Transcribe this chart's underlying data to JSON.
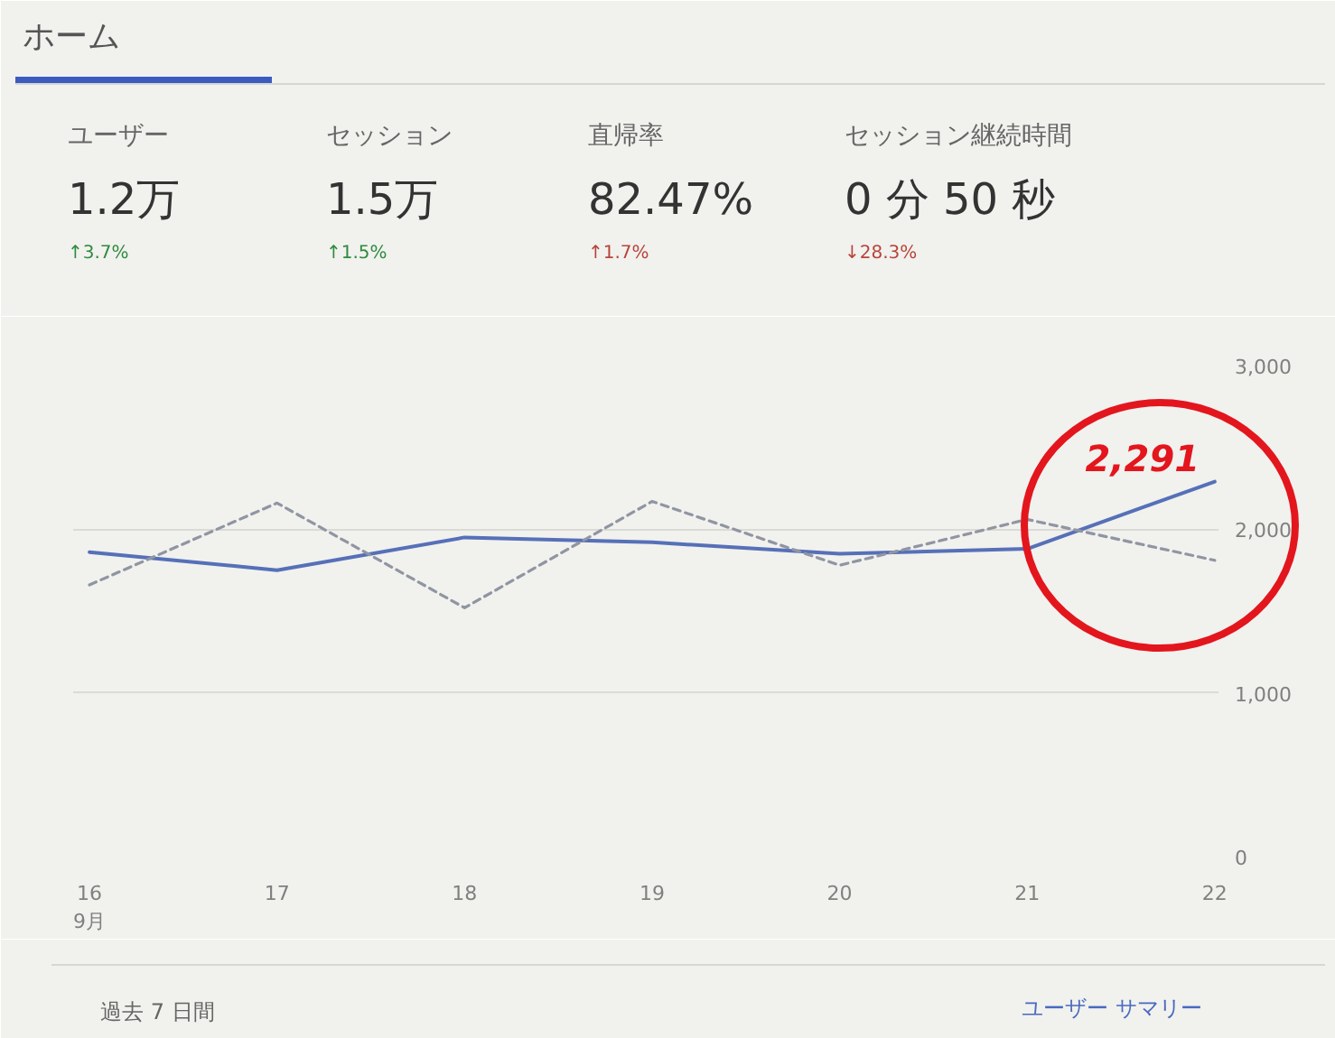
{
  "chart_data": {
    "type": "line",
    "title": "ホーム",
    "categories": [
      "16\n9月",
      "17",
      "18",
      "19",
      "20",
      "21",
      "22"
    ],
    "series": [
      {
        "color": "#5670b8",
        "values": [
          1860,
          1750,
          1950,
          1920,
          1850,
          1880,
          2291
        ]
      },
      {
        "color": "#9095a2",
        "line_style": "dashed",
        "values": [
          1660,
          2160,
          1520,
          2170,
          1780,
          2060,
          1810
        ]
      }
    ],
    "ylim": [
      0,
      3000
    ],
    "yticks": [
      0,
      {
        "value": 1000,
        "label": "1,000"
      },
      {
        "value": 2000,
        "label": "2,000"
      },
      {
        "value": 3000,
        "label": "3,000"
      }
    ],
    "grid": "y",
    "annotations": [
      "ユーザー",
      "1.2万",
      "↑3.7%",
      "セッション",
      "1.5万",
      "↑1.5%",
      "直帰率",
      "82.47%",
      "↑1.7%",
      "セッション継続時間",
      "0 分 50 秒",
      "↓28.3%",
      "過去 7 日間",
      "ユーザー サマリー",
      {
        "text": "2,291",
        "x": "22",
        "y": 2291
      }
    ]
  }
}
